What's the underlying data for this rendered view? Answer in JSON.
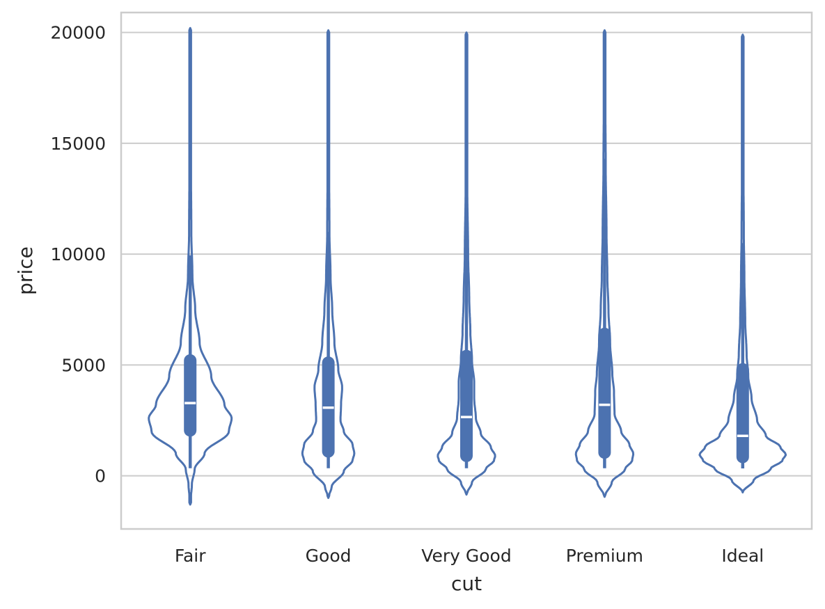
{
  "chart_data": {
    "type": "violin",
    "title": "",
    "xlabel": "cut",
    "ylabel": "price",
    "categories": [
      "Fair",
      "Good",
      "Very Good",
      "Premium",
      "Ideal"
    ],
    "ylim": [
      -2400,
      20900
    ],
    "yticks": [
      0,
      5000,
      10000,
      15000,
      20000
    ],
    "grid": "horizontal",
    "colors": {
      "violin": "#4c72b0",
      "median": "#ffffff",
      "grid": "#cccccc",
      "axes_edge": "#cccccc",
      "text": "#262626"
    },
    "violins": [
      {
        "category": "Fair",
        "min": -1300,
        "max": 20200,
        "q1": 2050,
        "median": 3280,
        "q3": 5200,
        "whisker_low": 340,
        "whisker_high": 9950,
        "density": [
          [
            -1300,
            0.0
          ],
          [
            -400,
            0.03
          ],
          [
            300,
            0.08
          ],
          [
            1000,
            0.26
          ],
          [
            2000,
            0.7
          ],
          [
            2600,
            0.75
          ],
          [
            3200,
            0.62
          ],
          [
            4500,
            0.38
          ],
          [
            6000,
            0.17
          ],
          [
            7500,
            0.09
          ],
          [
            9000,
            0.04
          ],
          [
            11000,
            0.02
          ],
          [
            15000,
            0.01
          ],
          [
            20200,
            0.0
          ]
        ]
      },
      {
        "category": "Good",
        "min": -1000,
        "max": 20100,
        "q1": 1100,
        "median": 3070,
        "q3": 5100,
        "whisker_low": 340,
        "whisker_high": 11000,
        "density": [
          [
            -1000,
            0.0
          ],
          [
            -500,
            0.06
          ],
          [
            200,
            0.28
          ],
          [
            700,
            0.44
          ],
          [
            1000,
            0.47
          ],
          [
            1400,
            0.44
          ],
          [
            2000,
            0.28
          ],
          [
            2500,
            0.22
          ],
          [
            3200,
            0.23
          ],
          [
            4000,
            0.25
          ],
          [
            4800,
            0.18
          ],
          [
            6000,
            0.11
          ],
          [
            7500,
            0.07
          ],
          [
            9000,
            0.04
          ],
          [
            11000,
            0.02
          ],
          [
            15000,
            0.01
          ],
          [
            20100,
            0.0
          ]
        ]
      },
      {
        "category": "Very Good",
        "min": -850,
        "max": 20000,
        "q1": 900,
        "median": 2650,
        "q3": 5400,
        "whisker_low": 340,
        "whisker_high": 12200,
        "density": [
          [
            -850,
            0.0
          ],
          [
            -300,
            0.1
          ],
          [
            300,
            0.35
          ],
          [
            700,
            0.5
          ],
          [
            900,
            0.52
          ],
          [
            1300,
            0.44
          ],
          [
            1900,
            0.26
          ],
          [
            2600,
            0.17
          ],
          [
            3500,
            0.14
          ],
          [
            4200,
            0.14
          ],
          [
            5200,
            0.1
          ],
          [
            6500,
            0.07
          ],
          [
            8000,
            0.05
          ],
          [
            10000,
            0.03
          ],
          [
            13000,
            0.015
          ],
          [
            20000,
            0.0
          ]
        ]
      },
      {
        "category": "Premium",
        "min": -950,
        "max": 20100,
        "q1": 1050,
        "median": 3200,
        "q3": 6400,
        "whisker_low": 340,
        "whisker_high": 14300,
        "density": [
          [
            -950,
            0.0
          ],
          [
            -300,
            0.13
          ],
          [
            300,
            0.37
          ],
          [
            700,
            0.5
          ],
          [
            1000,
            0.52
          ],
          [
            1400,
            0.45
          ],
          [
            2000,
            0.3
          ],
          [
            2800,
            0.18
          ],
          [
            3800,
            0.17
          ],
          [
            4600,
            0.14
          ],
          [
            6000,
            0.1
          ],
          [
            7500,
            0.07
          ],
          [
            9000,
            0.05
          ],
          [
            11000,
            0.035
          ],
          [
            14000,
            0.02
          ],
          [
            20100,
            0.0
          ]
        ]
      },
      {
        "category": "Ideal",
        "min": -750,
        "max": 19900,
        "q1": 850,
        "median": 1800,
        "q3": 4800,
        "whisker_low": 330,
        "whisker_high": 10500,
        "density": [
          [
            -750,
            0.0
          ],
          [
            -200,
            0.2
          ],
          [
            300,
            0.5
          ],
          [
            700,
            0.72
          ],
          [
            950,
            0.78
          ],
          [
            1300,
            0.68
          ],
          [
            1800,
            0.42
          ],
          [
            2500,
            0.26
          ],
          [
            3500,
            0.16
          ],
          [
            4500,
            0.1
          ],
          [
            5500,
            0.07
          ],
          [
            7000,
            0.045
          ],
          [
            9000,
            0.03
          ],
          [
            11000,
            0.02
          ],
          [
            15000,
            0.008
          ],
          [
            19900,
            0.0
          ]
        ]
      }
    ]
  }
}
